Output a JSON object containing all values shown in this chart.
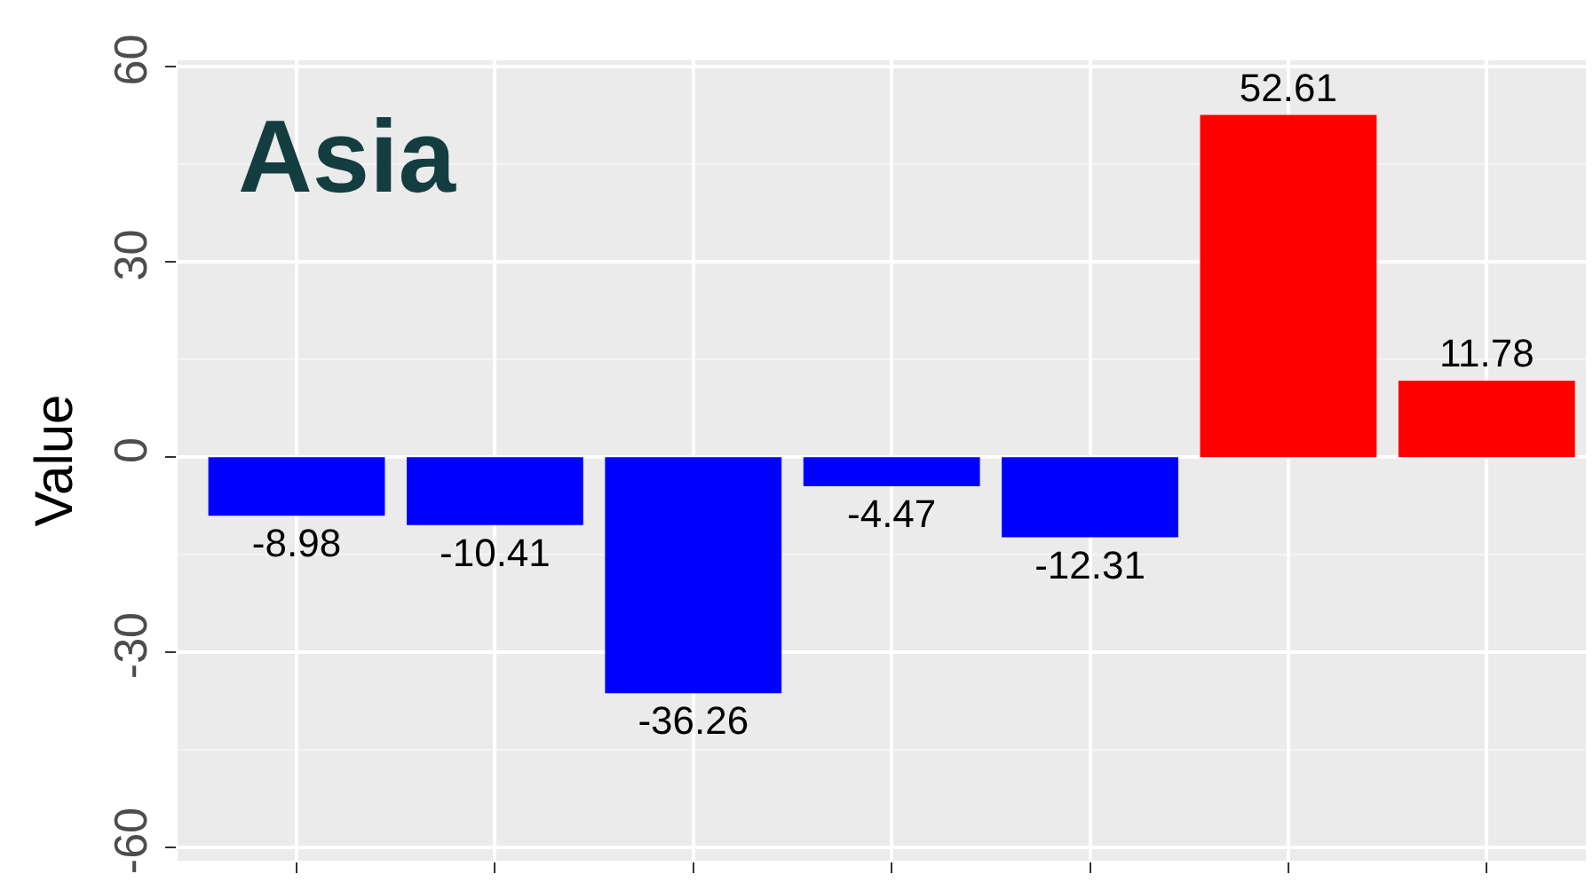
{
  "chart_data": {
    "type": "bar",
    "categories": [
      null,
      null,
      null,
      null,
      null,
      null,
      null
    ],
    "values": [
      -8.98,
      -10.41,
      -36.26,
      -4.47,
      -12.31,
      52.61,
      11.78
    ],
    "colors": [
      "#0000ff",
      "#0000ff",
      "#0000ff",
      "#0000ff",
      "#0000ff",
      "#ff0000",
      "#ff0000"
    ],
    "ylabel": "Value",
    "annotations": [
      "Asia"
    ],
    "ylim": [
      -62,
      61
    ],
    "yticks": [
      -60,
      -30,
      0,
      30,
      60
    ],
    "grid": true,
    "data_labels": true,
    "tick_labels": "y",
    "legend": false
  }
}
